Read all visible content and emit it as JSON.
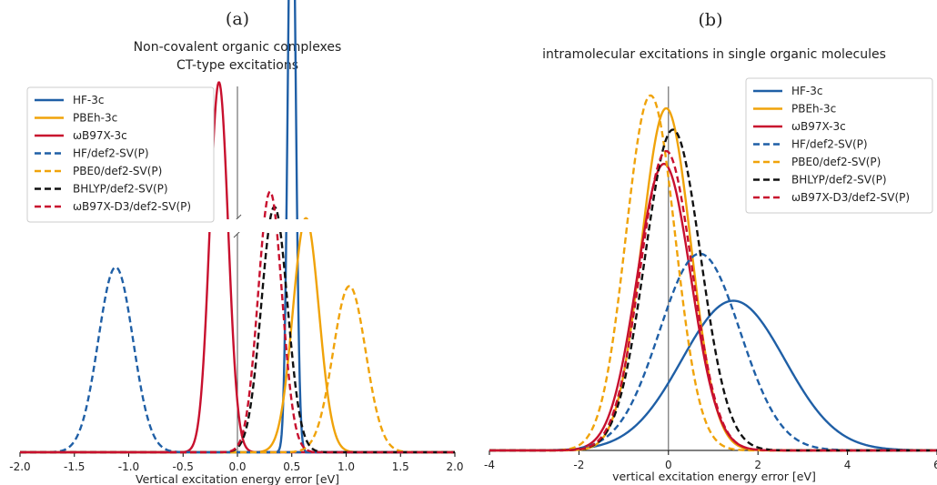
{
  "chart_data": [
    {
      "type": "line",
      "panel": "(a)",
      "title": "Non-covalent organic complexes",
      "subtitle": "CT-type excitations",
      "xlabel": "Vertical excitation energy error [eV]",
      "ylabel": "",
      "xlim": [
        -2.0,
        2.0
      ],
      "xticks": [
        "-2.0",
        "-1.5",
        "-1.0",
        "-0.5",
        "0.0",
        "0.5",
        "1.0",
        "1.5",
        "2.0"
      ],
      "grid": false,
      "legend_position": "top-left",
      "y_axis_broken": true,
      "series": [
        {
          "name": "HF-3c",
          "style": "solid",
          "color": "#1f5fa6",
          "mu": 0.5,
          "sigma": 0.035,
          "peak": 1.68
        },
        {
          "name": "PBEh-3c",
          "style": "solid",
          "color": "#f0a30a",
          "mu": 0.63,
          "sigma": 0.12,
          "peak": 0.62
        },
        {
          "name": "ωB97X-3c",
          "style": "solid",
          "color": "#c8102e",
          "mu": -0.17,
          "sigma": 0.085,
          "peak": 0.98
        },
        {
          "name": "HF/def2-SV(P)",
          "style": "dashed",
          "color": "#1f5fa6",
          "mu": -1.12,
          "sigma": 0.16,
          "peak": 0.49
        },
        {
          "name": "PBE0/def2-SV(P)",
          "style": "dashed",
          "color": "#f0a30a",
          "mu": 1.03,
          "sigma": 0.15,
          "peak": 0.44
        },
        {
          "name": "BHLYP/def2-SV(P)",
          "style": "dashed",
          "color": "#111111",
          "mu": 0.34,
          "sigma": 0.12,
          "peak": 0.65
        },
        {
          "name": "ωB97X-D3/def2-SV(P)",
          "style": "dashed",
          "color": "#c8102e",
          "mu": 0.3,
          "sigma": 0.11,
          "peak": 0.69
        }
      ]
    },
    {
      "type": "line",
      "panel": "(b)",
      "title": "intramolecular excitations in single organic molecules",
      "xlabel": "vertical excitation energy error [eV]",
      "ylabel": "",
      "xlim": [
        -4,
        6
      ],
      "xticks": [
        "-4",
        "-2",
        "0",
        "2",
        "4",
        "6"
      ],
      "grid": false,
      "legend_position": "top-right",
      "series": [
        {
          "name": "HF-3c",
          "style": "solid",
          "color": "#1f5fa6",
          "mu": 1.45,
          "sigma": 1.15,
          "peak": 0.35
        },
        {
          "name": "PBEh-3c",
          "style": "solid",
          "color": "#f0a30a",
          "mu": -0.05,
          "sigma": 0.55,
          "peak": 0.8
        },
        {
          "name": "ωB97X-3c",
          "style": "solid",
          "color": "#c8102e",
          "mu": -0.1,
          "sigma": 0.6,
          "peak": 0.67
        },
        {
          "name": "HF/def2-SV(P)",
          "style": "dashed",
          "color": "#1f5fa6",
          "mu": 0.7,
          "sigma": 0.9,
          "peak": 0.46
        },
        {
          "name": "PBE0/def2-SV(P)",
          "style": "dashed",
          "color": "#f0a30a",
          "mu": -0.4,
          "sigma": 0.55,
          "peak": 0.83
        },
        {
          "name": "BHLYP/def2-SV(P)",
          "style": "dashed",
          "color": "#111111",
          "mu": 0.1,
          "sigma": 0.62,
          "peak": 0.75
        },
        {
          "name": "ωB97X-D3/def2-SV(P)",
          "style": "dashed",
          "color": "#c8102e",
          "mu": -0.05,
          "sigma": 0.58,
          "peak": 0.7
        }
      ]
    }
  ]
}
